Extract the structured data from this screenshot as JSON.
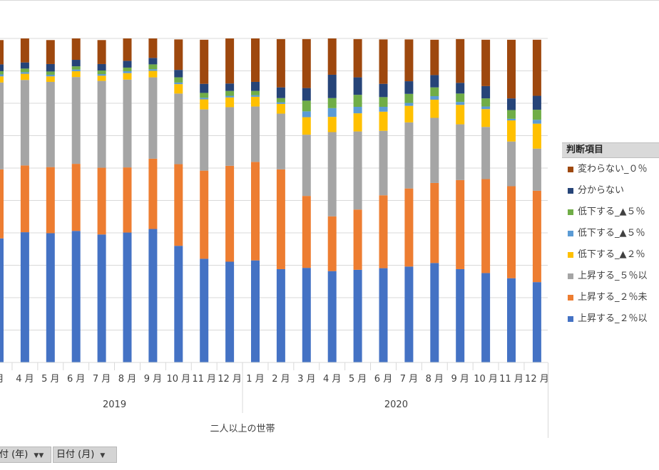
{
  "chart_data": {
    "type": "bar",
    "stacked": true,
    "percent_stacked": true,
    "title": "",
    "xlabel": "二人以上の世帯",
    "ylabel": "",
    "ylim": [
      0,
      100
    ],
    "grid": true,
    "legend_placement": "right",
    "legend_title": "判断項目",
    "categories": [
      "月",
      "4月",
      "5月",
      "6月",
      "7月",
      "8月",
      "9月",
      "10月",
      "11月",
      "12月",
      "1月",
      "2月",
      "3月",
      "4月",
      "5月",
      "6月",
      "7月",
      "8月",
      "9月",
      "10月",
      "11月",
      "12月"
    ],
    "category_labels": [
      "月",
      "4 月",
      "5 月",
      "6 月",
      "7 月",
      "8 月",
      "9 月",
      "10 月",
      "11 月",
      "12 月",
      "1 月",
      "2 月",
      "3 月",
      "4 月",
      "5 月",
      "6 月",
      "7 月",
      "8 月",
      "9 月",
      "10 月",
      "11 月",
      "12 月"
    ],
    "groups": [
      {
        "label": "2019",
        "start": 0,
        "end": 9
      },
      {
        "label": "2020",
        "start": 10,
        "end": 21
      }
    ],
    "series": [
      {
        "name": "上昇する_２％以",
        "color": "#4472c4",
        "values": [
          38.3,
          40.2,
          39.9,
          40.6,
          39.5,
          40.1,
          41.2,
          36,
          32,
          31.1,
          31.5,
          28.8,
          29.2,
          28.2,
          28.6,
          29.1,
          29.6,
          30.7,
          28.8,
          27.6,
          26,
          24.8
        ]
      },
      {
        "name": "上昇する_２％未",
        "color": "#ed7d31",
        "values": [
          21.3,
          20.6,
          20.4,
          20.7,
          20.6,
          20.1,
          21.7,
          25.2,
          27.2,
          29.6,
          30.4,
          30.8,
          22.2,
          16.9,
          18.6,
          22.5,
          24.1,
          24.7,
          27.5,
          29,
          28.4,
          28.2
        ]
      },
      {
        "name": "上昇する_５％以",
        "color": "#a5a5a5",
        "values": [
          26.8,
          26.4,
          26.3,
          26.8,
          26.8,
          27.1,
          25.1,
          21.8,
          18.9,
          18.1,
          17.1,
          17.2,
          18.9,
          26,
          24.1,
          19.9,
          20.4,
          20.1,
          17.2,
          16.1,
          13.8,
          13
        ]
      },
      {
        "name": "低下する_▲２％",
        "color": "#ffc000",
        "values": [
          1.9,
          1.9,
          1.7,
          1.8,
          1.6,
          2,
          2,
          2.9,
          3.1,
          3,
          3,
          3,
          5.4,
          4.7,
          5.6,
          5.9,
          5.1,
          5.6,
          6,
          5.5,
          6.5,
          7.7
        ]
      },
      {
        "name": "低下する_▲５％",
        "color": "#5b9bd5",
        "values": [
          0.6,
          0.5,
          0.5,
          0.5,
          0.5,
          0.6,
          0.5,
          0.5,
          0.5,
          0.5,
          0.5,
          0.5,
          1.8,
          2.7,
          2,
          1.5,
          0.9,
          1.1,
          0.9,
          0.8,
          0.5,
          1.2
        ]
      },
      {
        "name": "低下する_▲５％",
        "color": "#70ad47",
        "values": [
          1,
          1.1,
          1,
          1,
          1.1,
          1.1,
          1.5,
          1.6,
          1.5,
          1.5,
          1.3,
          1.3,
          3.3,
          3.1,
          3.7,
          3,
          2.8,
          2.7,
          2.6,
          2.5,
          2.7,
          3.1
        ]
      },
      {
        "name": "分からない",
        "color": "#264478",
        "values": [
          2.1,
          1.9,
          2.3,
          2,
          2,
          2.1,
          2,
          2.3,
          2.8,
          2.3,
          2.8,
          3.3,
          3.9,
          7.2,
          5.4,
          4.1,
          3.9,
          3.8,
          3.3,
          3.8,
          3.6,
          4.3
        ]
      },
      {
        "name": "変わらない_０％",
        "color": "#9e480e",
        "values": [
          7.5,
          7.4,
          7.4,
          6.6,
          7.4,
          6.9,
          6,
          9.4,
          13.6,
          13.9,
          13.4,
          14.9,
          15.1,
          11.2,
          11.8,
          13.7,
          12.9,
          10.9,
          13.5,
          14.3,
          18.1,
          17.3
        ]
      }
    ]
  },
  "legend": {
    "title": "判断項目",
    "items": [
      {
        "label": "変わらない_０％",
        "color": "#9e480e"
      },
      {
        "label": "分からない",
        "color": "#264478"
      },
      {
        "label": "低下する_▲５％",
        "color": "#70ad47"
      },
      {
        "label": "低下する_▲５％",
        "color": "#5b9bd5"
      },
      {
        "label": "低下する_▲２％",
        "color": "#ffc000"
      },
      {
        "label": "上昇する_５％以",
        "color": "#a5a5a5"
      },
      {
        "label": "上昇する_２％未",
        "color": "#ed7d31"
      },
      {
        "label": "上昇する_２％以",
        "color": "#4472c4"
      }
    ]
  },
  "field_buttons": {
    "year": "付 (年)",
    "month": "日付 (月)"
  }
}
